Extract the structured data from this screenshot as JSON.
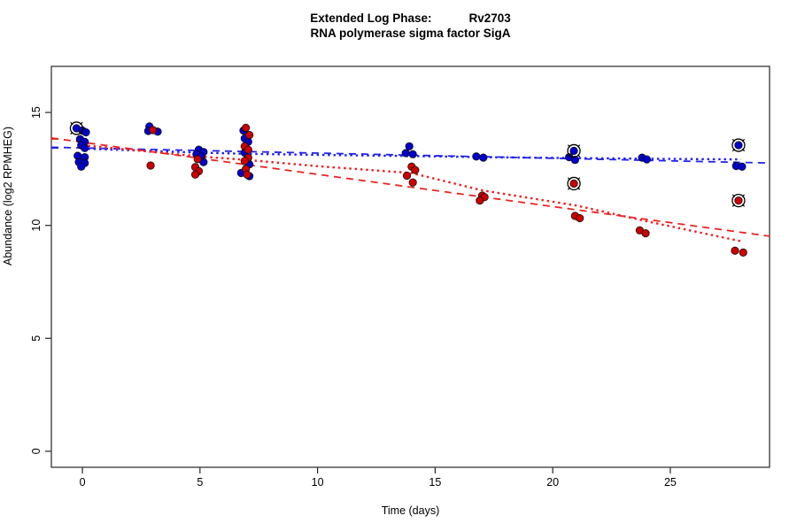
{
  "header": {
    "title_main": "Extended Log Phase:",
    "title_gene": "Rv2703",
    "subtitle": "RNA polymerase sigma factor SigA"
  },
  "chart_data": {
    "type": "scatter",
    "title": "Extended Log Phase: Rv2703",
    "subtitle": "RNA polymerase sigma factor SigA",
    "xlabel": "Time (days)",
    "ylabel": "Abundance (log2 RPMHEG)",
    "xlim": [
      -1.32,
      29.22
    ],
    "ylim": [
      -0.71,
      17.04
    ],
    "xticks": [
      0,
      5,
      10,
      15,
      20,
      25
    ],
    "yticks": [
      0,
      5,
      10,
      15
    ],
    "grid": false,
    "legend": "none",
    "colors": {
      "blue_point": "#0000CC",
      "red_point": "#CC0000",
      "blue_line": "#2222EE",
      "red_line": "#EE2222",
      "point_edge": "#000000",
      "frame": "#262626",
      "circled_ring": "#000000"
    },
    "series": [
      {
        "name": "series-blue",
        "color": "#0000CC",
        "points": [
          {
            "x": -0.25,
            "y": 14.3,
            "circled": true
          },
          {
            "x": 0.0,
            "y": 14.2
          },
          {
            "x": 0.15,
            "y": 14.12
          },
          {
            "x": -0.1,
            "y": 13.82
          },
          {
            "x": 0.1,
            "y": 13.7
          },
          {
            "x": -0.05,
            "y": 13.55
          },
          {
            "x": 0.1,
            "y": 13.42
          },
          {
            "x": -0.2,
            "y": 13.08
          },
          {
            "x": 0.1,
            "y": 13.02
          },
          {
            "x": -0.15,
            "y": 12.8
          },
          {
            "x": 0.1,
            "y": 12.76
          },
          {
            "x": -0.05,
            "y": 12.6
          },
          {
            "x": 2.85,
            "y": 14.38
          },
          {
            "x": 2.8,
            "y": 14.18
          },
          {
            "x": 3.2,
            "y": 14.15
          },
          {
            "x": 4.95,
            "y": 13.35
          },
          {
            "x": 5.15,
            "y": 13.25
          },
          {
            "x": 4.85,
            "y": 13.15
          },
          {
            "x": 5.05,
            "y": 13.05
          },
          {
            "x": 5.15,
            "y": 12.8
          },
          {
            "x": 6.85,
            "y": 14.2
          },
          {
            "x": 6.9,
            "y": 13.85
          },
          {
            "x": 7.05,
            "y": 13.7
          },
          {
            "x": 6.9,
            "y": 13.22
          },
          {
            "x": 7.1,
            "y": 12.7
          },
          {
            "x": 6.75,
            "y": 12.32
          },
          {
            "x": 7.1,
            "y": 12.18
          },
          {
            "x": 13.9,
            "y": 13.5
          },
          {
            "x": 13.75,
            "y": 13.2
          },
          {
            "x": 14.05,
            "y": 13.15
          },
          {
            "x": 16.75,
            "y": 13.05
          },
          {
            "x": 17.05,
            "y": 13.0
          },
          {
            "x": 20.9,
            "y": 13.3,
            "circled": true
          },
          {
            "x": 20.7,
            "y": 13.02
          },
          {
            "x": 20.95,
            "y": 12.9
          },
          {
            "x": 23.8,
            "y": 13.0
          },
          {
            "x": 24.0,
            "y": 12.92
          },
          {
            "x": 27.9,
            "y": 13.55,
            "circled": true
          },
          {
            "x": 27.8,
            "y": 12.63
          },
          {
            "x": 28.05,
            "y": 12.6
          }
        ]
      },
      {
        "name": "series-red",
        "color": "#CC0000",
        "points": [
          {
            "x": 3.0,
            "y": 14.22
          },
          {
            "x": 2.9,
            "y": 12.65
          },
          {
            "x": 4.9,
            "y": 12.93
          },
          {
            "x": 4.8,
            "y": 12.58
          },
          {
            "x": 4.95,
            "y": 12.4
          },
          {
            "x": 4.8,
            "y": 12.25
          },
          {
            "x": 6.95,
            "y": 14.32
          },
          {
            "x": 7.1,
            "y": 14.0
          },
          {
            "x": 6.9,
            "y": 13.5
          },
          {
            "x": 7.05,
            "y": 13.35
          },
          {
            "x": 7.05,
            "y": 13.0
          },
          {
            "x": 6.9,
            "y": 12.85
          },
          {
            "x": 6.95,
            "y": 12.5
          },
          {
            "x": 7.0,
            "y": 12.25
          },
          {
            "x": 14.0,
            "y": 12.6
          },
          {
            "x": 14.15,
            "y": 12.45
          },
          {
            "x": 13.8,
            "y": 12.2
          },
          {
            "x": 14.05,
            "y": 11.9
          },
          {
            "x": 17.0,
            "y": 11.32
          },
          {
            "x": 17.1,
            "y": 11.25
          },
          {
            "x": 16.9,
            "y": 11.1
          },
          {
            "x": 20.9,
            "y": 11.85,
            "circled": true
          },
          {
            "x": 20.95,
            "y": 10.42
          },
          {
            "x": 21.15,
            "y": 10.32
          },
          {
            "x": 23.7,
            "y": 9.78
          },
          {
            "x": 23.95,
            "y": 9.65
          },
          {
            "x": 27.9,
            "y": 11.1,
            "circled": true
          },
          {
            "x": 27.75,
            "y": 8.88
          },
          {
            "x": 28.1,
            "y": 8.8
          }
        ]
      }
    ],
    "lines": [
      {
        "name": "blue-regression-dashed",
        "color": "#2222EE",
        "style": "dashed",
        "path": [
          [
            -1.32,
            13.46
          ],
          [
            29.22,
            12.76
          ]
        ]
      },
      {
        "name": "red-regression-dashed",
        "color": "#EE2222",
        "style": "dashed",
        "path": [
          [
            -1.32,
            13.87
          ],
          [
            29.22,
            9.52
          ]
        ]
      },
      {
        "name": "blue-fit-dotted",
        "color": "#2222EE",
        "style": "dotted",
        "path": [
          [
            0,
            13.4
          ],
          [
            5,
            13.22
          ],
          [
            7,
            13.17
          ],
          [
            10,
            13.12
          ],
          [
            14,
            13.07
          ],
          [
            17,
            13.02
          ],
          [
            21,
            12.98
          ],
          [
            24,
            12.95
          ],
          [
            28,
            12.92
          ]
        ]
      },
      {
        "name": "red-fit-dotted",
        "color": "#EE2222",
        "style": "dotted",
        "path": [
          [
            0,
            13.55
          ],
          [
            5,
            13.05
          ],
          [
            7,
            12.9
          ],
          [
            10,
            12.62
          ],
          [
            14,
            12.32
          ],
          [
            17,
            11.55
          ],
          [
            21,
            10.88
          ],
          [
            24,
            10.18
          ],
          [
            28,
            9.3
          ]
        ]
      }
    ],
    "axis_marks": [
      {
        "name": "red-intercept-tick",
        "y": 13.83,
        "color": "#EE2222"
      },
      {
        "name": "blue-intercept-tick",
        "y": 13.43,
        "color": "#2222EE"
      }
    ]
  }
}
